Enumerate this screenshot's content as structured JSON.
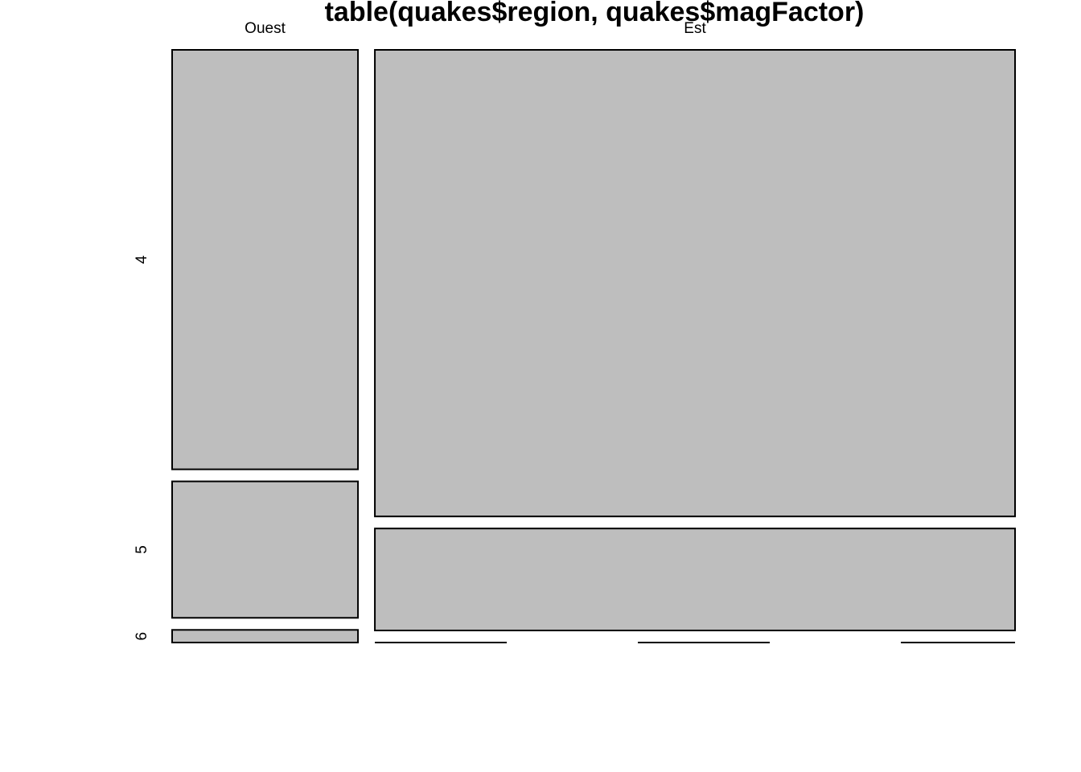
{
  "chart_data": {
    "type": "mosaic",
    "title": "table(quakes$region, quakes$magFactor)",
    "x_variable_levels": [
      "Ouest",
      "Est"
    ],
    "y_variable_levels": [
      "4",
      "5",
      "6"
    ],
    "counts": [
      {
        "region": "Ouest",
        "values": [
          {
            "mag": "4",
            "count": 166
          },
          {
            "mag": "5",
            "count": 54
          },
          {
            "mag": "6",
            "count": 5
          }
        ]
      },
      {
        "region": "Est",
        "values": [
          {
            "mag": "4",
            "count": 636
          },
          {
            "mag": "5",
            "count": 139
          },
          {
            "mag": "6",
            "count": 0
          }
        ]
      }
    ],
    "fill_color": "#bebebe",
    "border_color": "#000000",
    "background": "#ffffff"
  }
}
